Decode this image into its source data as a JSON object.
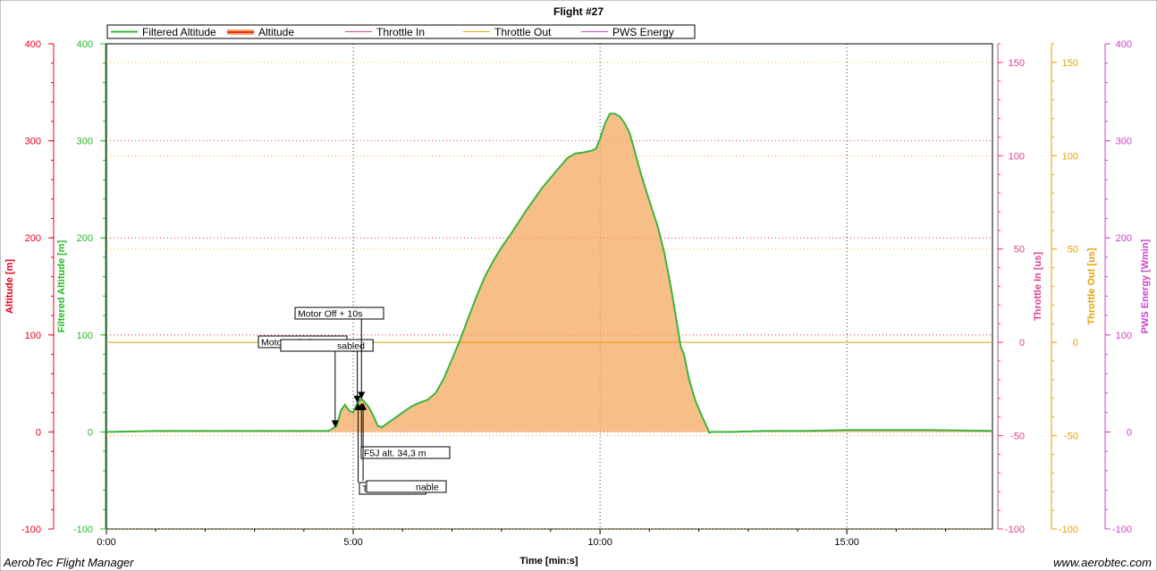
{
  "chart_data": {
    "type": "area",
    "title": "Flight #27",
    "xlabel": "Time [min:s]",
    "x_ticks": [
      "0:00",
      "5:00",
      "10:00",
      "15:00"
    ],
    "xlim_seconds": [
      0,
      1077
    ],
    "legend": {
      "placement": "top-left",
      "entries": [
        "Filtered Altitude",
        "Altitude",
        "Throttle In",
        "Throttle Out",
        "PWS Energy"
      ]
    },
    "grid": true,
    "axes": {
      "altitude": {
        "label": "Altitude [m]",
        "ylim": [
          -100,
          400
        ],
        "ticks": [
          "-100",
          "0",
          "100",
          "200",
          "300",
          "400"
        ],
        "color": "#e8001c"
      },
      "filtered_altitude": {
        "label": "Filtered Altitude [m]",
        "ylim": [
          -100,
          400
        ],
        "ticks": [
          "-100",
          "0",
          "100",
          "200",
          "300",
          "400"
        ],
        "color": "#22bb22"
      },
      "throttle_in": {
        "label": "Throttle In [us]",
        "ylim": [
          -100,
          160
        ],
        "ticks": [
          "-100",
          "-50",
          "0",
          "50",
          "100",
          "150"
        ],
        "color": "#e0408c"
      },
      "throttle_out": {
        "label": "Throttle Out [us]",
        "ylim": [
          -100,
          160
        ],
        "ticks": [
          "-100",
          "-50",
          "0",
          "50",
          "100",
          "150"
        ],
        "color": "#e8a000"
      },
      "pws_energy": {
        "label": "PWS Energy [Wmin]",
        "ylim": [
          -100,
          400
        ],
        "ticks": [
          "-100",
          "0",
          "100",
          "200",
          "300",
          "400"
        ],
        "color": "#cc44cc"
      }
    },
    "series": [
      {
        "name": "Filtered Altitude",
        "color": "#3cb43c",
        "points": [
          [
            0,
            0
          ],
          [
            60,
            1
          ],
          [
            120,
            1
          ],
          [
            180,
            1
          ],
          [
            240,
            1
          ],
          [
            270,
            1
          ],
          [
            280,
            6
          ],
          [
            285,
            22
          ],
          [
            290,
            28
          ],
          [
            295,
            22
          ],
          [
            300,
            20
          ],
          [
            305,
            30
          ],
          [
            310,
            34
          ],
          [
            315,
            30
          ],
          [
            320,
            24
          ],
          [
            325,
            16
          ],
          [
            330,
            6
          ],
          [
            335,
            5
          ],
          [
            340,
            8
          ],
          [
            350,
            14
          ],
          [
            360,
            20
          ],
          [
            370,
            26
          ],
          [
            380,
            30
          ],
          [
            390,
            33
          ],
          [
            400,
            40
          ],
          [
            410,
            55
          ],
          [
            420,
            75
          ],
          [
            430,
            95
          ],
          [
            440,
            118
          ],
          [
            450,
            140
          ],
          [
            460,
            160
          ],
          [
            470,
            176
          ],
          [
            480,
            190
          ],
          [
            490,
            202
          ],
          [
            500,
            215
          ],
          [
            510,
            228
          ],
          [
            520,
            240
          ],
          [
            530,
            252
          ],
          [
            540,
            262
          ],
          [
            550,
            272
          ],
          [
            560,
            282
          ],
          [
            570,
            287
          ],
          [
            580,
            288
          ],
          [
            590,
            290
          ],
          [
            595,
            292
          ],
          [
            600,
            302
          ],
          [
            606,
            318
          ],
          [
            612,
            328
          ],
          [
            618,
            328
          ],
          [
            624,
            325
          ],
          [
            630,
            318
          ],
          [
            636,
            308
          ],
          [
            642,
            290
          ],
          [
            650,
            265
          ],
          [
            660,
            238
          ],
          [
            670,
            212
          ],
          [
            678,
            185
          ],
          [
            686,
            150
          ],
          [
            692,
            120
          ],
          [
            698,
            88
          ],
          [
            702,
            80
          ],
          [
            708,
            55
          ],
          [
            716,
            32
          ],
          [
            724,
            16
          ],
          [
            730,
            5
          ],
          [
            733,
            -1
          ],
          [
            735,
            0
          ],
          [
            760,
            0
          ],
          [
            800,
            1
          ],
          [
            850,
            1
          ],
          [
            900,
            2
          ],
          [
            950,
            2
          ],
          [
            1000,
            2
          ],
          [
            1077,
            1
          ]
        ]
      },
      {
        "name": "Altitude",
        "color": "#f5a860",
        "points": [
          [
            0,
            0
          ],
          [
            60,
            1
          ],
          [
            120,
            1
          ],
          [
            180,
            1
          ],
          [
            240,
            1
          ],
          [
            270,
            1
          ],
          [
            280,
            6
          ],
          [
            285,
            22
          ],
          [
            290,
            28
          ],
          [
            295,
            22
          ],
          [
            300,
            20
          ],
          [
            305,
            30
          ],
          [
            310,
            34
          ],
          [
            315,
            30
          ],
          [
            320,
            24
          ],
          [
            325,
            16
          ],
          [
            330,
            6
          ],
          [
            335,
            5
          ],
          [
            340,
            8
          ],
          [
            350,
            14
          ],
          [
            360,
            20
          ],
          [
            370,
            26
          ],
          [
            380,
            30
          ],
          [
            390,
            33
          ],
          [
            400,
            40
          ],
          [
            410,
            55
          ],
          [
            420,
            75
          ],
          [
            430,
            95
          ],
          [
            440,
            118
          ],
          [
            450,
            140
          ],
          [
            460,
            160
          ],
          [
            470,
            176
          ],
          [
            480,
            190
          ],
          [
            490,
            202
          ],
          [
            500,
            215
          ],
          [
            510,
            228
          ],
          [
            520,
            240
          ],
          [
            530,
            252
          ],
          [
            540,
            262
          ],
          [
            550,
            272
          ],
          [
            560,
            282
          ],
          [
            570,
            287
          ],
          [
            580,
            288
          ],
          [
            590,
            290
          ],
          [
            595,
            292
          ],
          [
            600,
            302
          ],
          [
            606,
            318
          ],
          [
            612,
            328
          ],
          [
            618,
            328
          ],
          [
            624,
            325
          ],
          [
            630,
            318
          ],
          [
            636,
            308
          ],
          [
            642,
            290
          ],
          [
            650,
            265
          ],
          [
            660,
            238
          ],
          [
            670,
            212
          ],
          [
            678,
            185
          ],
          [
            686,
            150
          ],
          [
            692,
            120
          ],
          [
            698,
            88
          ],
          [
            702,
            80
          ],
          [
            708,
            55
          ],
          [
            716,
            32
          ],
          [
            724,
            16
          ],
          [
            730,
            5
          ],
          [
            733,
            -1
          ],
          [
            735,
            0
          ],
          [
            760,
            0
          ],
          [
            800,
            1
          ],
          [
            850,
            1
          ],
          [
            900,
            2
          ],
          [
            950,
            2
          ],
          [
            1000,
            2
          ],
          [
            1077,
            1
          ]
        ]
      },
      {
        "name": "Throttle Out",
        "color": "#e8a000",
        "points": [
          [
            0,
            0
          ],
          [
            1077,
            0
          ]
        ]
      }
    ],
    "annotations": [
      {
        "text": "Motor switch On",
        "t": 278
      },
      {
        "text": "sabled",
        "t": 305
      },
      {
        "text": "Motor Off + 10s",
        "t": 310
      },
      {
        "text": "F5J alt. 34,3 m",
        "t": 310
      },
      {
        "text": "Time switch",
        "t": 306
      },
      {
        "text": "nable",
        "t": 312
      }
    ]
  },
  "footer": {
    "left": "AerobTec Flight Manager",
    "right": "www.aerobtec.com"
  }
}
